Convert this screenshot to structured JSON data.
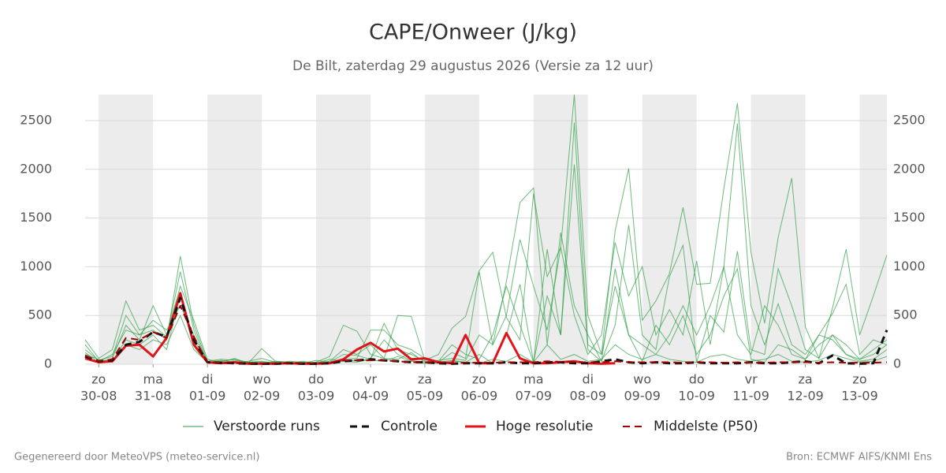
{
  "chart_data": {
    "type": "line",
    "title": "CAPE/Onweer (J/kg)",
    "subtitle": "De Bilt, zaterdag 29 augustus 2026 (Versie za 12 uur)",
    "footer_left": "Gegenereerd door MeteoVPS (meteo-service.nl)",
    "footer_right": "Bron: ECMWF AIFS/KNMI Ens",
    "xlim": [
      -0.25,
      14.5
    ],
    "xticks": [
      {
        "value": 0,
        "label": "zo"
      },
      {
        "value": 1,
        "label": "ma"
      },
      {
        "value": 2,
        "label": "di"
      },
      {
        "value": 3,
        "label": "wo"
      },
      {
        "value": 4,
        "label": "do"
      },
      {
        "value": 5,
        "label": "vr"
      },
      {
        "value": 6,
        "label": "za"
      },
      {
        "value": 7,
        "label": "zo"
      },
      {
        "value": 8,
        "label": "ma"
      },
      {
        "value": 9,
        "label": "di"
      },
      {
        "value": 10,
        "label": "wo"
      },
      {
        "value": 11,
        "label": "do"
      },
      {
        "value": 12,
        "label": "vr"
      },
      {
        "value": 13,
        "label": "za"
      },
      {
        "value": 14,
        "label": "zo"
      }
    ],
    "xtick_dates": [
      "30-08",
      "31-08",
      "01-09",
      "02-09",
      "03-09",
      "04-09",
      "05-09",
      "06-09",
      "07-09",
      "08-09",
      "09-09",
      "10-09",
      "11-09",
      "12-09",
      "13-09"
    ],
    "shaded_days": [
      0,
      2,
      4,
      6,
      8,
      10,
      12,
      14
    ],
    "ylim": [
      0,
      2767
    ],
    "yticks": [
      0,
      500,
      1000,
      1500,
      2000,
      2500
    ],
    "grid": true,
    "x": [
      -0.25,
      0,
      0.25,
      0.5,
      0.75,
      1,
      1.25,
      1.5,
      1.75,
      2,
      2.25,
      2.5,
      2.75,
      3,
      3.25,
      3.5,
      3.75,
      4,
      4.25,
      4.5,
      4.75,
      5,
      5.25,
      5.5,
      5.75,
      6,
      6.25,
      6.5,
      6.75,
      7,
      7.25,
      7.5,
      7.75,
      8,
      8.25,
      8.5,
      8.75,
      9,
      9.25,
      9.5,
      9.75,
      10,
      10.25,
      10.5,
      10.75,
      11,
      11.25,
      11.5,
      11.75,
      12,
      12.25,
      12.5,
      12.75,
      13,
      13.25,
      13.5,
      13.75,
      14,
      14.25,
      14.5
    ],
    "perturbed": {
      "name": "Verstoorde runs",
      "color": "#2e9e44",
      "runs": [
        [
          150,
          40,
          80,
          500,
          300,
          350,
          250,
          1110,
          400,
          30,
          50,
          40,
          20,
          10,
          30,
          20,
          10,
          20,
          80,
          400,
          340,
          100,
          60,
          500,
          490,
          40,
          100,
          370,
          490,
          960,
          1150,
          480,
          250,
          1750,
          900,
          1200,
          2767,
          500,
          100,
          1370,
          2010,
          450,
          650,
          930,
          1610,
          820,
          830,
          1800,
          2680,
          1150,
          420,
          1300,
          1910,
          380,
          60,
          580,
          1180,
          300,
          700,
          1120
        ],
        [
          250,
          60,
          150,
          650,
          350,
          400,
          280,
          950,
          350,
          20,
          40,
          20,
          30,
          60,
          20,
          10,
          30,
          10,
          20,
          50,
          60,
          350,
          350,
          200,
          150,
          60,
          20,
          120,
          60,
          950,
          200,
          500,
          1280,
          800,
          350,
          1200,
          500,
          100,
          300,
          1250,
          700,
          1000,
          300,
          560,
          300,
          1060,
          200,
          1000,
          2470,
          600,
          200,
          620,
          200,
          100,
          300,
          520,
          820,
          100,
          250,
          200
        ],
        [
          120,
          20,
          60,
          400,
          250,
          600,
          300,
          800,
          450,
          50,
          20,
          60,
          10,
          160,
          30,
          20,
          10,
          40,
          20,
          100,
          90,
          50,
          420,
          150,
          100,
          30,
          40,
          60,
          40,
          300,
          200,
          850,
          1660,
          1810,
          200,
          1350,
          600,
          300,
          30,
          400,
          1430,
          300,
          150,
          900,
          1220,
          20,
          500,
          330,
          1160,
          150,
          100,
          980,
          600,
          150,
          60,
          300,
          200,
          50,
          100,
          200
        ],
        [
          80,
          10,
          30,
          250,
          200,
          300,
          150,
          700,
          250,
          10,
          20,
          10,
          20,
          30,
          10,
          5,
          20,
          10,
          30,
          150,
          100,
          200,
          60,
          50,
          120,
          20,
          30,
          200,
          100,
          50,
          300,
          800,
          400,
          20,
          1180,
          300,
          2480,
          200,
          100,
          800,
          300,
          200,
          100,
          300,
          600,
          300,
          600,
          1000,
          300,
          100,
          600,
          400,
          100,
          50,
          200,
          300,
          100,
          50,
          150,
          250
        ],
        [
          200,
          30,
          100,
          350,
          300,
          450,
          350,
          600,
          300,
          20,
          30,
          50,
          20,
          20,
          10,
          30,
          20,
          10,
          50,
          30,
          20,
          60,
          250,
          100,
          40,
          10,
          20,
          40,
          20,
          100,
          10,
          300,
          820,
          20,
          700,
          300,
          2050,
          150,
          30,
          980,
          300,
          30,
          400,
          200,
          500,
          100,
          300,
          700,
          980,
          50,
          20,
          200,
          150,
          50,
          300,
          250,
          100,
          30,
          50,
          150
        ],
        [
          100,
          50,
          20,
          200,
          150,
          250,
          200,
          500,
          150,
          20,
          10,
          20,
          10,
          10,
          20,
          10,
          10,
          20,
          10,
          30,
          40,
          40,
          30,
          80,
          30,
          10,
          10,
          30,
          20,
          10,
          50,
          30,
          100,
          20,
          200,
          50,
          100,
          30,
          50,
          200,
          100,
          50,
          100,
          50,
          30,
          20,
          80,
          100,
          50,
          30,
          50,
          100,
          30,
          20,
          40,
          100,
          60,
          20,
          30,
          80
        ]
      ]
    },
    "series": [
      {
        "name": "Controle",
        "color": "#111111",
        "dash": true,
        "width": 3,
        "values": [
          80,
          30,
          40,
          200,
          230,
          330,
          280,
          680,
          250,
          20,
          15,
          10,
          5,
          5,
          5,
          10,
          5,
          5,
          10,
          30,
          40,
          50,
          40,
          30,
          20,
          20,
          10,
          5,
          10,
          10,
          10,
          20,
          10,
          10,
          20,
          20,
          10,
          10,
          30,
          50,
          20,
          10,
          20,
          10,
          10,
          20,
          10,
          10,
          10,
          20,
          10,
          10,
          20,
          30,
          10,
          90,
          10,
          5,
          10,
          350
        ]
      },
      {
        "name": "Hoge resolutie",
        "color": "#e0141a",
        "dash": false,
        "width": 3,
        "values": [
          60,
          20,
          30,
          190,
          200,
          80,
          270,
          730,
          200,
          20,
          10,
          20,
          5,
          5,
          5,
          10,
          5,
          5,
          10,
          50,
          150,
          220,
          130,
          160,
          50,
          60,
          20,
          10,
          300,
          10,
          10,
          320,
          60,
          10,
          10,
          20,
          30,
          10,
          5,
          10,
          null,
          null,
          null,
          null,
          null,
          null,
          null,
          null,
          null,
          null,
          null,
          null,
          null,
          null,
          null,
          null,
          null,
          null,
          null,
          null
        ]
      },
      {
        "name": "Middelste (P50)",
        "color": "#a00000",
        "dash": true,
        "width": 2,
        "values": [
          90,
          30,
          50,
          270,
          250,
          330,
          270,
          600,
          280,
          20,
          15,
          10,
          10,
          10,
          10,
          10,
          10,
          10,
          15,
          40,
          40,
          40,
          40,
          30,
          20,
          20,
          15,
          10,
          15,
          15,
          15,
          20,
          20,
          20,
          30,
          25,
          20,
          20,
          20,
          30,
          20,
          20,
          20,
          20,
          15,
          20,
          20,
          15,
          20,
          15,
          15,
          20,
          20,
          20,
          15,
          20,
          15,
          15,
          15,
          20
        ]
      }
    ]
  }
}
